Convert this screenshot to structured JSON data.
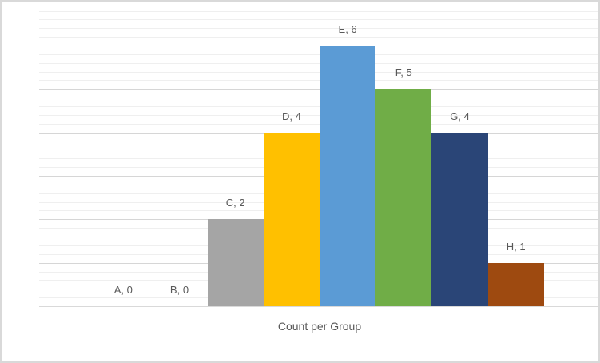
{
  "chart_data": {
    "type": "bar",
    "title": "Count per Group",
    "categories": [
      "A",
      "B",
      "C",
      "D",
      "E",
      "F",
      "G",
      "H"
    ],
    "values": [
      0,
      0,
      2,
      4,
      6,
      5,
      4,
      1
    ],
    "point_labels": [
      "A, 0",
      "B, 0",
      "C, 2",
      "D, 4",
      "E, 6",
      "F, 5",
      "G, 4",
      "H, 1"
    ],
    "bar_colors": [
      null,
      null,
      "#A5A5A5",
      "#FFC000",
      "#5B9BD5",
      "#70AD47",
      "#2A4577",
      "#9E4A10"
    ],
    "xlabel": "",
    "ylabel": "",
    "ylim": [
      0,
      7
    ],
    "major_unit": 1,
    "minor_unit": 0.2,
    "gridlines": "horizontal major and minor, no axis tick labels",
    "legend": "none",
    "bar_gap": 0,
    "edge_padding_slots": 1
  },
  "colors": {
    "background": "#FFFFFF",
    "chart_border": "#D9D9D9",
    "gridline_minor": "#EFEFEF",
    "gridline_major": "#D6D6D6",
    "axis_line": "#D9D9D9",
    "label_text": "#595959"
  }
}
